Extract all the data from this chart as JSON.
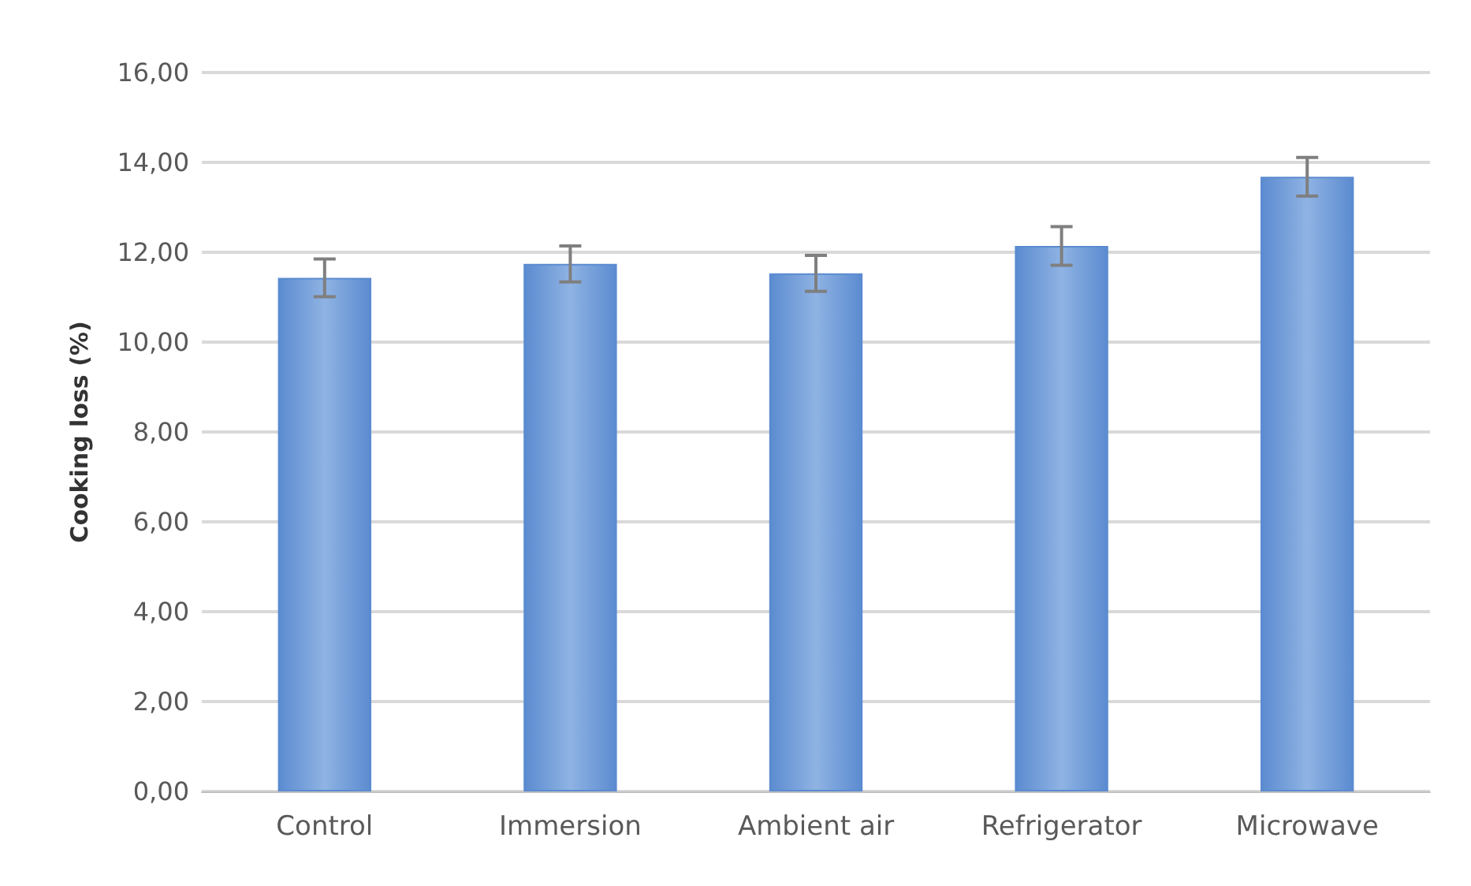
{
  "chart_data": {
    "type": "bar",
    "ylabel": "Cooking loss (%)",
    "categories": [
      "Control",
      "Immersion",
      "Ambient air",
      "Refrigerator",
      "Microwave"
    ],
    "values": [
      11.43,
      11.74,
      11.53,
      12.14,
      13.68
    ],
    "errors": [
      0.42,
      0.4,
      0.4,
      0.43,
      0.43
    ],
    "color": "#5b8bd0",
    "ylim": [
      0,
      16
    ],
    "yticks": [
      {
        "value": 0,
        "label": "0,00"
      },
      {
        "value": 2,
        "label": "2,00"
      },
      {
        "value": 4,
        "label": "4,00"
      },
      {
        "value": 6,
        "label": "6,00"
      },
      {
        "value": 8,
        "label": "8,00"
      },
      {
        "value": 10,
        "label": "10,00"
      },
      {
        "value": 12,
        "label": "12,00"
      },
      {
        "value": 14,
        "label": "14,00"
      },
      {
        "value": 16,
        "label": "16,00"
      }
    ],
    "grid": "y"
  }
}
